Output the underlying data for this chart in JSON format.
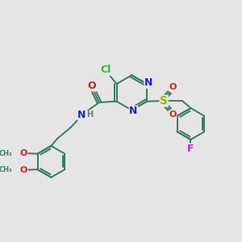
{
  "bg_color": "#e5e5e5",
  "bond_color": "#3a7a60",
  "bond_lw": 1.4,
  "atom_colors": {
    "Cl": "#33bb33",
    "N": "#2020cc",
    "O": "#cc2020",
    "S": "#aaaa00",
    "F": "#cc22cc",
    "H": "#777777"
  },
  "font_size": 8
}
